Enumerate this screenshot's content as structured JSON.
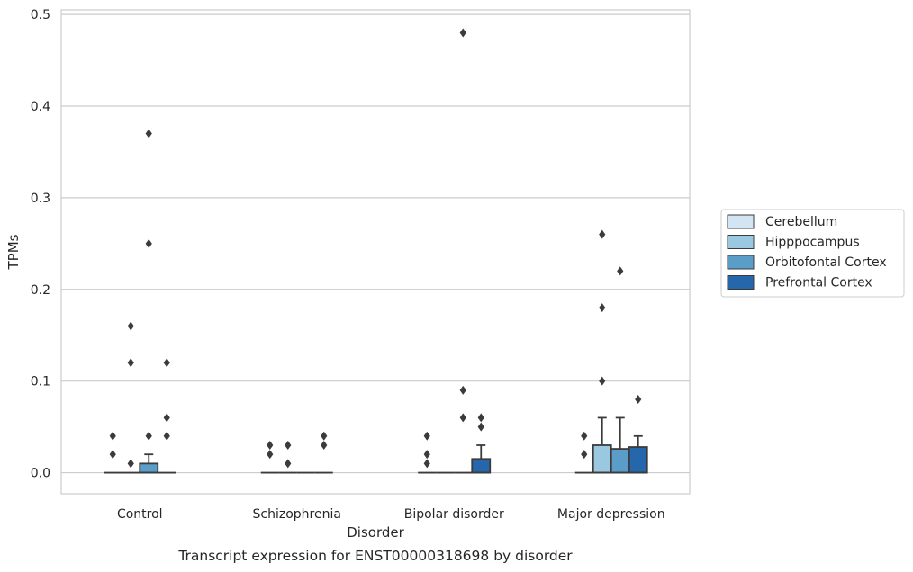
{
  "chart_data": {
    "type": "box",
    "title": "",
    "caption": "Transcript expression for ENST00000318698 by disorder",
    "xlabel": "Disorder",
    "ylabel": "TPMs",
    "ylim": [
      -0.023,
      0.505
    ],
    "yticks": [
      0.0,
      0.1,
      0.2,
      0.3,
      0.4,
      0.5
    ],
    "ytick_labels": [
      "0.0",
      "0.1",
      "0.2",
      "0.3",
      "0.4",
      "0.5"
    ],
    "grid": true,
    "legend_position": "right",
    "categories": [
      "Control",
      "Schizophrenia",
      "Bipolar disorder",
      "Major depression"
    ],
    "series": [
      {
        "name": "Cerebellum",
        "color": "#d3e4f3",
        "boxes": [
          {
            "q1": 0,
            "median": 0,
            "q3": 0,
            "whisker_low": 0,
            "whisker_high": 0,
            "outliers": [
              0.02,
              0.04
            ]
          },
          {
            "q1": 0,
            "median": 0,
            "q3": 0,
            "whisker_low": 0,
            "whisker_high": 0,
            "outliers": [
              0.02,
              0.03
            ]
          },
          {
            "q1": 0,
            "median": 0,
            "q3": 0,
            "whisker_low": 0,
            "whisker_high": 0,
            "outliers": [
              0.01,
              0.02,
              0.04
            ]
          },
          {
            "q1": 0,
            "median": 0,
            "q3": 0,
            "whisker_low": 0,
            "whisker_high": 0,
            "outliers": [
              0.02,
              0.04
            ]
          }
        ]
      },
      {
        "name": "Hipppocampus",
        "color": "#9ac8e0",
        "boxes": [
          {
            "q1": 0,
            "median": 0,
            "q3": 0,
            "whisker_low": 0,
            "whisker_high": 0,
            "outliers": [
              0.01,
              0.12,
              0.16
            ]
          },
          {
            "q1": 0,
            "median": 0,
            "q3": 0,
            "whisker_low": 0,
            "whisker_high": 0,
            "outliers": [
              0.01,
              0.03
            ]
          },
          {
            "q1": 0,
            "median": 0,
            "q3": 0,
            "whisker_low": 0,
            "whisker_high": 0,
            "outliers": []
          },
          {
            "q1": 0,
            "median": 0,
            "q3": 0.03,
            "whisker_low": 0,
            "whisker_high": 0.06,
            "outliers": [
              0.1,
              0.18,
              0.26
            ]
          }
        ]
      },
      {
        "name": "Orbitofontal Cortex",
        "color": "#5b9dc9",
        "boxes": [
          {
            "q1": 0,
            "median": 0,
            "q3": 0.01,
            "whisker_low": 0,
            "whisker_high": 0.02,
            "outliers": [
              0.04,
              0.25,
              0.37
            ]
          },
          {
            "q1": 0,
            "median": 0,
            "q3": 0,
            "whisker_low": 0,
            "whisker_high": 0,
            "outliers": []
          },
          {
            "q1": 0,
            "median": 0,
            "q3": 0,
            "whisker_low": 0,
            "whisker_high": 0,
            "outliers": [
              0.06,
              0.09,
              0.48
            ]
          },
          {
            "q1": 0,
            "median": 0,
            "q3": 0.026,
            "whisker_low": 0,
            "whisker_high": 0.06,
            "outliers": [
              0.22
            ]
          }
        ]
      },
      {
        "name": "Prefrontal Cortex",
        "color": "#2666ab",
        "boxes": [
          {
            "q1": 0,
            "median": 0,
            "q3": 0,
            "whisker_low": 0,
            "whisker_high": 0,
            "outliers": [
              0.04,
              0.06,
              0.12
            ]
          },
          {
            "q1": 0,
            "median": 0,
            "q3": 0,
            "whisker_low": 0,
            "whisker_high": 0,
            "outliers": [
              0.03,
              0.04
            ]
          },
          {
            "q1": 0,
            "median": 0,
            "q3": 0.015,
            "whisker_low": 0,
            "whisker_high": 0.03,
            "outliers": [
              0.05,
              0.06
            ]
          },
          {
            "q1": 0,
            "median": 0,
            "q3": 0.028,
            "whisker_low": 0,
            "whisker_high": 0.04,
            "outliers": [
              0.08
            ]
          }
        ]
      }
    ]
  }
}
